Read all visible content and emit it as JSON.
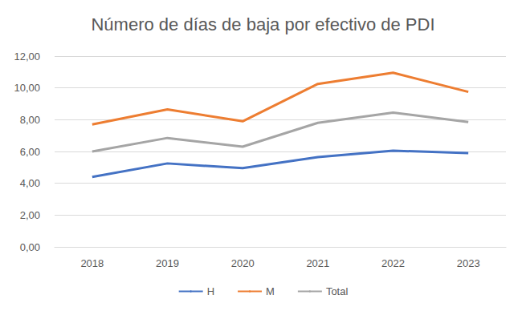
{
  "chart_data": {
    "type": "line",
    "title": "Número de días de baja por efectivo de PDI",
    "categories": [
      "2018",
      "2019",
      "2020",
      "2021",
      "2022",
      "2023"
    ],
    "series": [
      {
        "name": "H",
        "color": "#4472c4",
        "values": [
          4.4,
          5.25,
          4.95,
          5.65,
          6.05,
          5.9
        ]
      },
      {
        "name": "M",
        "color": "#ed7d31",
        "values": [
          7.7,
          8.65,
          7.9,
          10.25,
          10.95,
          9.75
        ]
      },
      {
        "name": "Total",
        "color": "#a5a5a5",
        "values": [
          6.0,
          6.85,
          6.3,
          7.8,
          8.45,
          7.85
        ]
      }
    ],
    "ylim": [
      0,
      12
    ],
    "yticks": [
      {
        "value": 0,
        "label": "0,00"
      },
      {
        "value": 2,
        "label": "2,00"
      },
      {
        "value": 4,
        "label": "4,00"
      },
      {
        "value": 6,
        "label": "6,00"
      },
      {
        "value": 8,
        "label": "8,00"
      },
      {
        "value": 10,
        "label": "10,00"
      },
      {
        "value": 12,
        "label": "12,00"
      }
    ],
    "grid": true,
    "legend": "bottom"
  }
}
